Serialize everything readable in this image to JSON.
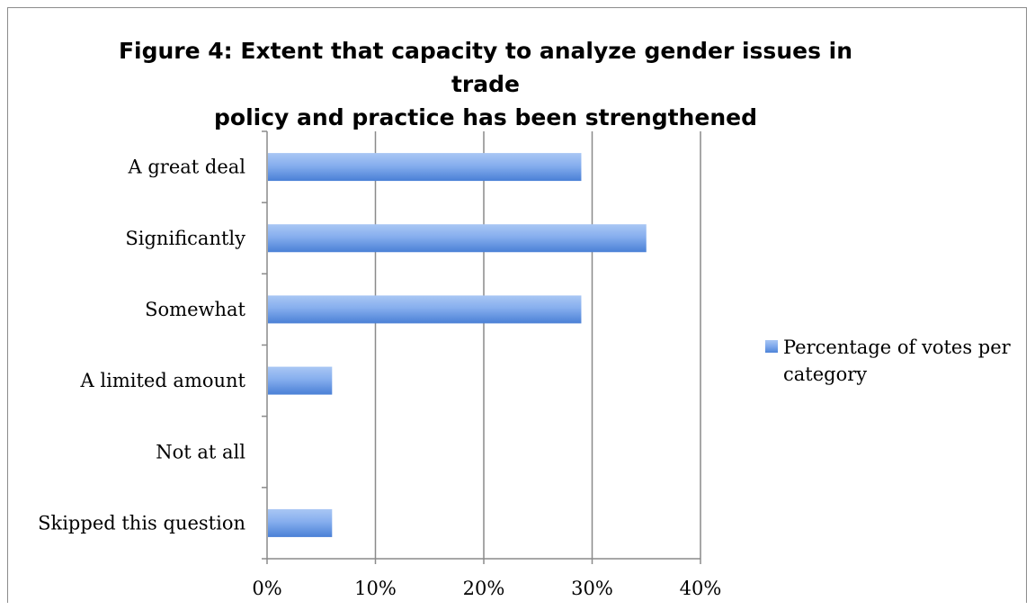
{
  "chart_data": {
    "type": "bar",
    "orientation": "horizontal",
    "title": "Figure 4: Extent that capacity to analyze gender issues in trade policy and practice has been strengthened",
    "title_lines": [
      "Figure 4: Extent that capacity to analyze gender issues in trade",
      "policy and practice has been strengthened"
    ],
    "categories": [
      "A great deal",
      "Significantly",
      "Somewhat",
      "A limited amount",
      "Not at all",
      "Skipped this question"
    ],
    "series": [
      {
        "name": "Percentage of votes per category",
        "values": [
          0.29,
          0.35,
          0.29,
          0.06,
          0.0,
          0.06
        ],
        "color": "#5b8fdf"
      }
    ],
    "xlim": [
      0,
      0.4
    ],
    "x_ticks": [
      0,
      0.1,
      0.2,
      0.3,
      0.4
    ],
    "x_tick_labels": [
      "0%",
      "10%",
      "20%",
      "30%",
      "40%"
    ],
    "grid": "vertical",
    "legend_position": "right"
  }
}
